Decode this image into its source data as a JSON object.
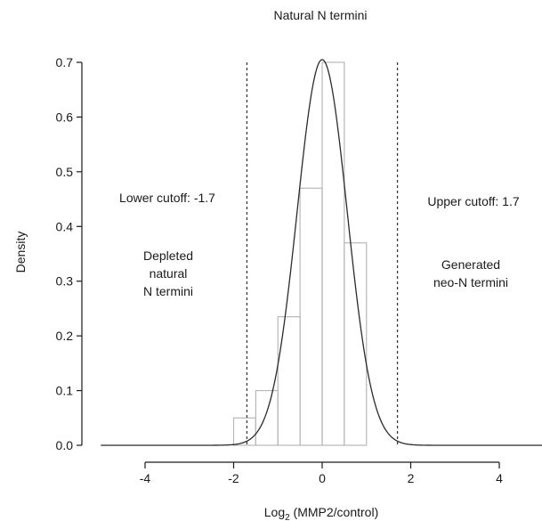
{
  "chart_data": {
    "type": "histogram",
    "title": "Natural N termini",
    "xlabel_main": "Log",
    "xlabel_sub": "2",
    "xlabel_rest": " (MMP2/control)",
    "ylabel": "Density",
    "xlim": [
      -5,
      5
    ],
    "ylim": [
      0,
      0.7
    ],
    "x_ticks": [
      "-4",
      "-2",
      "0",
      "2",
      "4"
    ],
    "x_tick_values": [
      -4,
      -2,
      0,
      2,
      4
    ],
    "y_ticks": [
      "0.0",
      "0.1",
      "0.2",
      "0.3",
      "0.4",
      "0.5",
      "0.6",
      "0.7"
    ],
    "y_tick_values": [
      0,
      0.1,
      0.2,
      0.3,
      0.4,
      0.5,
      0.6,
      0.7
    ],
    "bins": [
      {
        "x0": -2.0,
        "x1": -1.5,
        "density": 0.05
      },
      {
        "x0": -1.5,
        "x1": -1.0,
        "density": 0.1
      },
      {
        "x0": -1.0,
        "x1": -0.5,
        "density": 0.235
      },
      {
        "x0": -0.5,
        "x1": 0.0,
        "density": 0.47
      },
      {
        "x0": 0.0,
        "x1": 0.5,
        "density": 0.7
      },
      {
        "x0": 0.5,
        "x1": 1.0,
        "density": 0.37
      }
    ],
    "density_curve": {
      "mean": 0.0,
      "sd": 0.565,
      "peak": 0.705
    },
    "cutoffs": [
      {
        "x": -1.7,
        "label": "Lower cutoff: -1.7"
      },
      {
        "x": 1.7,
        "label": "Upper cutoff: 1.7"
      }
    ],
    "annotations": {
      "left_region": [
        "Depleted",
        "natural",
        "N termini"
      ],
      "right_region": [
        "Generated",
        "neo-N termini"
      ]
    },
    "colors": {
      "bar_stroke": "#b8b8b8",
      "curve": "#2b2b2b",
      "cutoff_line": "#3a3a3a",
      "axis": "#1a1a1a"
    }
  }
}
